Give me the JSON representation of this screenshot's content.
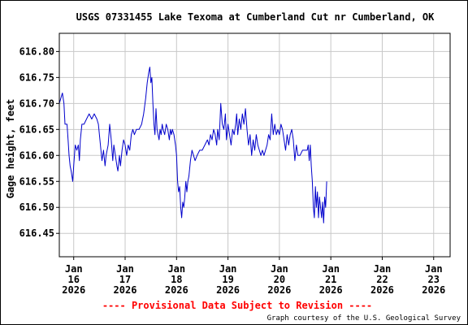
{
  "chart_data": {
    "type": "line",
    "title": "USGS 07331455 Lake Texoma at Cumberland Cut nr Cumberland, OK",
    "xlabel": "",
    "ylabel": "Gage height, feet",
    "ylim": [
      616.405,
      616.835
    ],
    "yticks": [
      "616.80",
      "616.75",
      "616.70",
      "616.65",
      "616.60",
      "616.55",
      "616.50",
      "616.45"
    ],
    "xlim": [
      -0.28,
      7.32
    ],
    "xticks": [
      {
        "day": 0,
        "lines": [
          "Jan",
          "16",
          "2026"
        ]
      },
      {
        "day": 1,
        "lines": [
          "Jan",
          "17",
          "2026"
        ]
      },
      {
        "day": 2,
        "lines": [
          "Jan",
          "18",
          "2026"
        ]
      },
      {
        "day": 3,
        "lines": [
          "Jan",
          "19",
          "2026"
        ]
      },
      {
        "day": 4,
        "lines": [
          "Jan",
          "20",
          "2026"
        ]
      },
      {
        "day": 5,
        "lines": [
          "Jan",
          "21",
          "2026"
        ]
      },
      {
        "day": 6,
        "lines": [
          "Jan",
          "22",
          "2026"
        ]
      },
      {
        "day": 7,
        "lines": [
          "Jan",
          "23",
          "2026"
        ]
      }
    ],
    "grid": true,
    "series_color": "#0000cc",
    "series": [
      {
        "name": "",
        "points": [
          [
            -0.28,
            616.7
          ],
          [
            -0.25,
            616.71
          ],
          [
            -0.22,
            616.72
          ],
          [
            -0.19,
            616.7
          ],
          [
            -0.17,
            616.66
          ],
          [
            -0.13,
            616.66
          ],
          [
            -0.11,
            616.63
          ],
          [
            -0.09,
            616.6
          ],
          [
            -0.07,
            616.58
          ],
          [
            -0.05,
            616.57
          ],
          [
            -0.02,
            616.55
          ],
          [
            0.0,
            616.58
          ],
          [
            0.03,
            616.62
          ],
          [
            0.06,
            616.61
          ],
          [
            0.09,
            616.62
          ],
          [
            0.11,
            616.59
          ],
          [
            0.13,
            616.63
          ],
          [
            0.16,
            616.66
          ],
          [
            0.2,
            616.66
          ],
          [
            0.25,
            616.67
          ],
          [
            0.3,
            616.68
          ],
          [
            0.35,
            616.67
          ],
          [
            0.4,
            616.68
          ],
          [
            0.45,
            616.67
          ],
          [
            0.48,
            616.66
          ],
          [
            0.52,
            616.62
          ],
          [
            0.55,
            616.59
          ],
          [
            0.58,
            616.61
          ],
          [
            0.61,
            616.58
          ],
          [
            0.63,
            616.6
          ],
          [
            0.67,
            616.62
          ],
          [
            0.7,
            616.66
          ],
          [
            0.73,
            616.63
          ],
          [
            0.76,
            616.59
          ],
          [
            0.78,
            616.62
          ],
          [
            0.81,
            616.6
          ],
          [
            0.84,
            616.58
          ],
          [
            0.86,
            616.57
          ],
          [
            0.89,
            616.6
          ],
          [
            0.91,
            616.58
          ],
          [
            0.94,
            616.61
          ],
          [
            0.97,
            616.63
          ],
          [
            1.0,
            616.62
          ],
          [
            1.03,
            616.6
          ],
          [
            1.06,
            616.62
          ],
          [
            1.09,
            616.61
          ],
          [
            1.12,
            616.64
          ],
          [
            1.15,
            616.65
          ],
          [
            1.18,
            616.64
          ],
          [
            1.22,
            616.65
          ],
          [
            1.27,
            616.65
          ],
          [
            1.32,
            616.66
          ],
          [
            1.36,
            616.68
          ],
          [
            1.4,
            616.71
          ],
          [
            1.43,
            616.74
          ],
          [
            1.46,
            616.76
          ],
          [
            1.48,
            616.77
          ],
          [
            1.5,
            616.74
          ],
          [
            1.52,
            616.75
          ],
          [
            1.54,
            616.7
          ],
          [
            1.56,
            616.66
          ],
          [
            1.58,
            616.64
          ],
          [
            1.6,
            616.69
          ],
          [
            1.62,
            616.65
          ],
          [
            1.64,
            616.64
          ],
          [
            1.66,
            616.63
          ],
          [
            1.68,
            616.65
          ],
          [
            1.7,
            616.64
          ],
          [
            1.72,
            616.66
          ],
          [
            1.74,
            616.65
          ],
          [
            1.77,
            616.64
          ],
          [
            1.8,
            616.66
          ],
          [
            1.83,
            616.65
          ],
          [
            1.86,
            616.63
          ],
          [
            1.88,
            616.65
          ],
          [
            1.9,
            616.64
          ],
          [
            1.92,
            616.65
          ],
          [
            1.95,
            616.64
          ],
          [
            1.98,
            616.62
          ],
          [
            2.0,
            616.6
          ],
          [
            2.02,
            616.55
          ],
          [
            2.04,
            616.53
          ],
          [
            2.06,
            616.54
          ],
          [
            2.08,
            616.5
          ],
          [
            2.1,
            616.48
          ],
          [
            2.12,
            616.51
          ],
          [
            2.14,
            616.5
          ],
          [
            2.16,
            616.52
          ],
          [
            2.18,
            616.55
          ],
          [
            2.2,
            616.53
          ],
          [
            2.22,
            616.55
          ],
          [
            2.24,
            616.56
          ],
          [
            2.27,
            616.59
          ],
          [
            2.3,
            616.61
          ],
          [
            2.33,
            616.6
          ],
          [
            2.36,
            616.59
          ],
          [
            2.4,
            616.6
          ],
          [
            2.45,
            616.61
          ],
          [
            2.5,
            616.61
          ],
          [
            2.55,
            616.62
          ],
          [
            2.6,
            616.63
          ],
          [
            2.63,
            616.62
          ],
          [
            2.66,
            616.64
          ],
          [
            2.69,
            616.63
          ],
          [
            2.72,
            616.65
          ],
          [
            2.75,
            616.64
          ],
          [
            2.78,
            616.62
          ],
          [
            2.8,
            616.65
          ],
          [
            2.83,
            616.63
          ],
          [
            2.86,
            616.7
          ],
          [
            2.89,
            616.66
          ],
          [
            2.92,
            616.65
          ],
          [
            2.95,
            616.68
          ],
          [
            2.97,
            616.63
          ],
          [
            3.0,
            616.66
          ],
          [
            3.03,
            616.64
          ],
          [
            3.06,
            616.62
          ],
          [
            3.09,
            616.65
          ],
          [
            3.12,
            616.64
          ],
          [
            3.15,
            616.66
          ],
          [
            3.17,
            616.68
          ],
          [
            3.19,
            616.64
          ],
          [
            3.22,
            616.67
          ],
          [
            3.25,
            616.65
          ],
          [
            3.28,
            616.68
          ],
          [
            3.31,
            616.66
          ],
          [
            3.34,
            616.69
          ],
          [
            3.37,
            616.65
          ],
          [
            3.4,
            616.62
          ],
          [
            3.43,
            616.64
          ],
          [
            3.46,
            616.6
          ],
          [
            3.49,
            616.63
          ],
          [
            3.52,
            616.61
          ],
          [
            3.55,
            616.64
          ],
          [
            3.58,
            616.62
          ],
          [
            3.61,
            616.61
          ],
          [
            3.64,
            616.6
          ],
          [
            3.67,
            616.61
          ],
          [
            3.7,
            616.6
          ],
          [
            3.73,
            616.61
          ],
          [
            3.76,
            616.62
          ],
          [
            3.79,
            616.64
          ],
          [
            3.82,
            616.63
          ],
          [
            3.85,
            616.68
          ],
          [
            3.88,
            616.64
          ],
          [
            3.91,
            616.66
          ],
          [
            3.94,
            616.64
          ],
          [
            3.97,
            616.65
          ],
          [
            4.0,
            616.64
          ],
          [
            4.03,
            616.66
          ],
          [
            4.06,
            616.65
          ],
          [
            4.09,
            616.63
          ],
          [
            4.12,
            616.61
          ],
          [
            4.15,
            616.64
          ],
          [
            4.18,
            616.62
          ],
          [
            4.21,
            616.64
          ],
          [
            4.24,
            616.65
          ],
          [
            4.27,
            616.63
          ],
          [
            4.3,
            616.59
          ],
          [
            4.33,
            616.62
          ],
          [
            4.36,
            616.6
          ],
          [
            4.4,
            616.6
          ],
          [
            4.45,
            616.61
          ],
          [
            4.5,
            616.61
          ],
          [
            4.54,
            616.61
          ],
          [
            4.56,
            616.62
          ],
          [
            4.58,
            616.59
          ],
          [
            4.6,
            616.62
          ],
          [
            4.62,
            616.58
          ],
          [
            4.64,
            616.55
          ],
          [
            4.66,
            616.5
          ],
          [
            4.68,
            616.48
          ],
          [
            4.7,
            616.54
          ],
          [
            4.72,
            616.5
          ],
          [
            4.74,
            616.53
          ],
          [
            4.76,
            616.48
          ],
          [
            4.78,
            616.52
          ],
          [
            4.8,
            616.5
          ],
          [
            4.82,
            616.48
          ],
          [
            4.84,
            616.51
          ],
          [
            4.86,
            616.47
          ],
          [
            4.88,
            616.52
          ],
          [
            4.9,
            616.5
          ],
          [
            4.92,
            616.55
          ]
        ]
      }
    ]
  },
  "provisional_notice": "---- Provisional Data Subject to Revision ----",
  "provisional_color": "#ff0000",
  "credit": "Graph courtesy of the U.S. Geological Survey"
}
